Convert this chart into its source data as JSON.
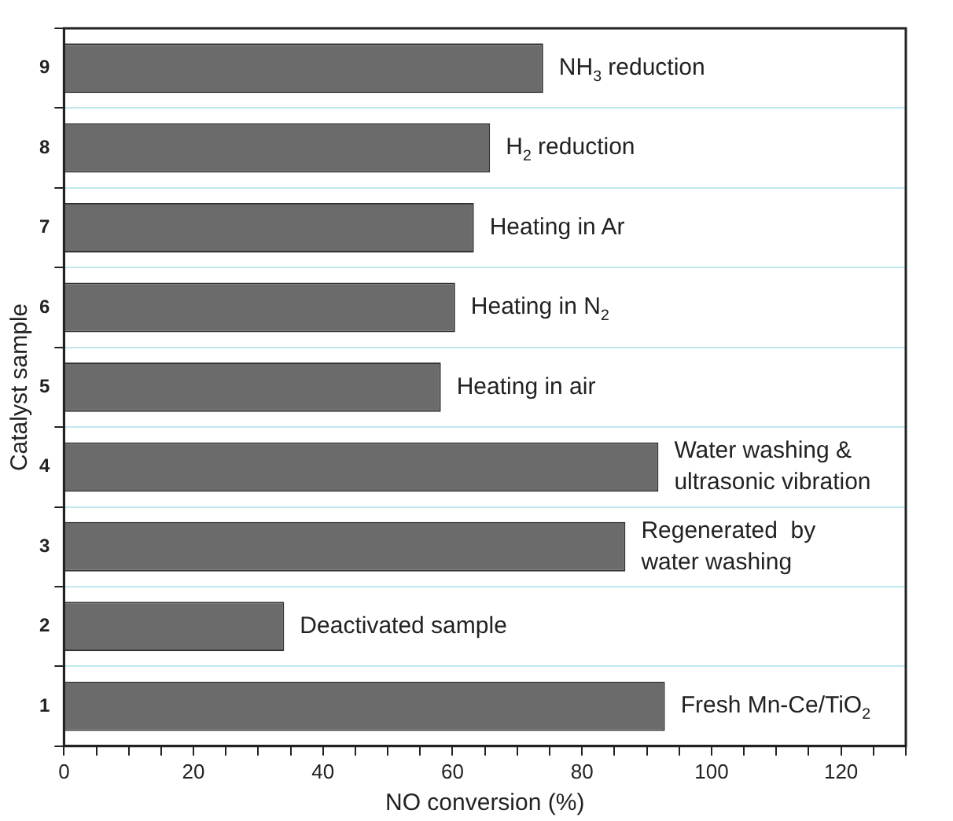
{
  "chart_data": {
    "type": "bar",
    "orientation": "horizontal",
    "xlabel": "NO conversion (%)",
    "ylabel": "Catalyst sample",
    "categories": [
      "9",
      "8",
      "7",
      "6",
      "5",
      "4",
      "3",
      "2",
      "1"
    ],
    "values": [
      74,
      65.8,
      63.3,
      60.4,
      58.2,
      91.8,
      86.7,
      34,
      92.8
    ],
    "color": "#6b6b6b",
    "xlim": [
      0,
      130
    ],
    "xticks": [
      0,
      {
        "value": 5,
        "label": null
      },
      {
        "value": 10,
        "label": null
      },
      {
        "value": 15,
        "label": null
      },
      20,
      {
        "value": 25,
        "label": null
      },
      {
        "value": 30,
        "label": null
      },
      {
        "value": 35,
        "label": null
      },
      40,
      {
        "value": 45,
        "label": null
      },
      {
        "value": 50,
        "label": null
      },
      {
        "value": 55,
        "label": null
      },
      60,
      {
        "value": 65,
        "label": null
      },
      {
        "value": 70,
        "label": null
      },
      {
        "value": 75,
        "label": null
      },
      80,
      {
        "value": 85,
        "label": null
      },
      {
        "value": 90,
        "label": null
      },
      {
        "value": 95,
        "label": null
      },
      100,
      {
        "value": 105,
        "label": null
      },
      {
        "value": 110,
        "label": null
      },
      {
        "value": 115,
        "label": null
      },
      120,
      {
        "value": 125,
        "label": null
      },
      {
        "value": 130,
        "label": null
      }
    ],
    "grid": "y",
    "annotations": [
      {
        "text": "NH$_{3}$ reduction",
        "x": 74,
        "y": "9"
      },
      {
        "text": "H$_{2}$ reduction",
        "x": 65.8,
        "y": "8"
      },
      {
        "text": "Heating in Ar",
        "x": 63.3,
        "y": "7"
      },
      {
        "text": "Heating in N$_{2}$",
        "x": 60.4,
        "y": "6"
      },
      {
        "text": "Heating in air",
        "x": 58.2,
        "y": "5"
      },
      {
        "text": "Water washing &\nultrasonic vibration",
        "x": 91.8,
        "y": "4"
      },
      {
        "text": "Regenerated  by\nwater washing",
        "x": 86.7,
        "y": "3"
      },
      {
        "text": "Deactivated sample",
        "x": 34,
        "y": "2"
      },
      {
        "text": "Fresh Mn-Ce/TiO$_{2}$",
        "x": 92.8,
        "y": "1"
      }
    ]
  }
}
